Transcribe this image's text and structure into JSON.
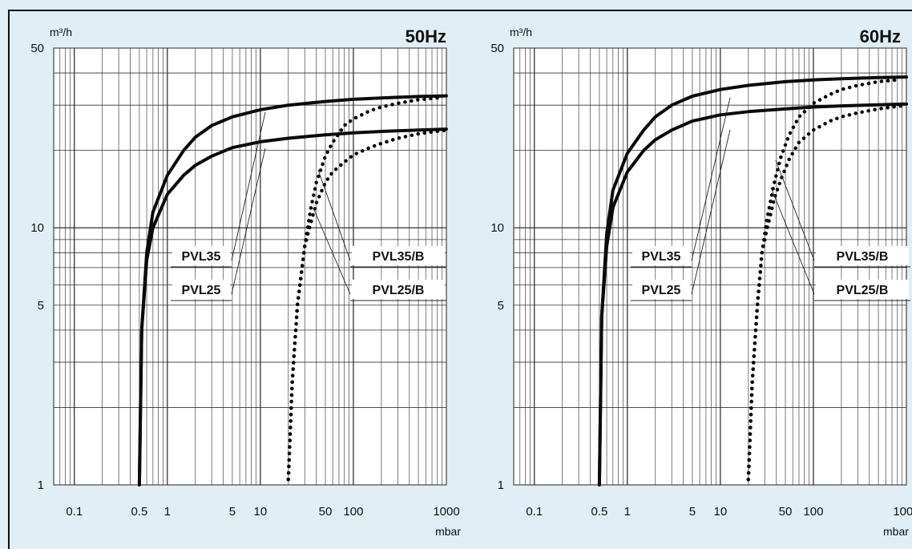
{
  "chart_data": [
    {
      "type": "line",
      "title": "50Hz",
      "xlabel": "mbar",
      "ylabel": "m³/h",
      "xscale": "log",
      "yscale": "log",
      "xlim": [
        0.06,
        1000
      ],
      "ylim": [
        1,
        50
      ],
      "grid": true,
      "x_ticks": [
        0.1,
        0.5,
        1,
        5,
        10,
        50,
        100,
        1000
      ],
      "x_tick_labels": [
        "0.1",
        "0.5",
        "1",
        "5",
        "10",
        "50",
        "100",
        "1000"
      ],
      "y_ticks": [
        1,
        5,
        10,
        50
      ],
      "y_tick_labels": [
        "1",
        "5",
        "10",
        "50"
      ],
      "series": [
        {
          "name": "PVL35",
          "style": "solid",
          "x": [
            0.5,
            0.53,
            0.6,
            0.7,
            1,
            1.5,
            2,
            3,
            5,
            10,
            20,
            50,
            100,
            200,
            500,
            1000
          ],
          "y": [
            1,
            4,
            8,
            11.5,
            16,
            20,
            22.5,
            25,
            27,
            28.8,
            30,
            31,
            31.6,
            32,
            32.4,
            32.6
          ]
        },
        {
          "name": "PVL25",
          "style": "solid",
          "x": [
            0.5,
            0.53,
            0.6,
            0.7,
            1,
            1.5,
            2,
            3,
            5,
            10,
            20,
            50,
            100,
            200,
            500,
            1000
          ],
          "y": [
            1,
            4,
            7.5,
            10,
            13.5,
            16,
            17.5,
            19,
            20.5,
            21.6,
            22.3,
            23,
            23.4,
            23.7,
            24,
            24.2
          ]
        },
        {
          "name": "PVL35/B",
          "style": "dotted",
          "x": [
            20,
            22,
            25,
            30,
            35,
            40,
            50,
            60,
            80,
            100,
            150,
            200,
            300,
            500,
            800
          ],
          "y": [
            1.05,
            2.5,
            5,
            8.5,
            12,
            15,
            19,
            21.5,
            25,
            26.5,
            28.5,
            29.5,
            30.5,
            31.5,
            32
          ]
        },
        {
          "name": "PVL25/B",
          "style": "dotted",
          "x": [
            20,
            22,
            25,
            30,
            35,
            40,
            50,
            60,
            80,
            100,
            150,
            200,
            300,
            500,
            1000
          ],
          "y": [
            1.05,
            2.5,
            5,
            8.5,
            10.5,
            12.5,
            15,
            16.5,
            18,
            19.2,
            20.5,
            21.3,
            22.3,
            23.2,
            24
          ]
        }
      ]
    },
    {
      "type": "line",
      "title": "60Hz",
      "xlabel": "mbar",
      "ylabel": "m³/h",
      "xscale": "log",
      "yscale": "log",
      "xlim": [
        0.06,
        1000
      ],
      "ylim": [
        1,
        50
      ],
      "grid": true,
      "x_ticks": [
        0.1,
        0.5,
        1,
        5,
        10,
        50,
        100,
        1000
      ],
      "x_tick_labels": [
        "0.1",
        "0.5",
        "1",
        "5",
        "10",
        "50",
        "100",
        "1000"
      ],
      "y_ticks": [
        1,
        5,
        10,
        50
      ],
      "y_tick_labels": [
        "1",
        "5",
        "10",
        "50"
      ],
      "series": [
        {
          "name": "PVL35",
          "style": "solid",
          "x": [
            0.5,
            0.53,
            0.6,
            0.7,
            1,
            1.5,
            2,
            3,
            5,
            10,
            20,
            50,
            100,
            200,
            500,
            1000
          ],
          "y": [
            1,
            4.5,
            9.5,
            14,
            19.5,
            24,
            27,
            30,
            32.5,
            34.5,
            35.8,
            37,
            37.6,
            38,
            38.4,
            38.6
          ]
        },
        {
          "name": "PVL25",
          "style": "solid",
          "x": [
            0.5,
            0.53,
            0.6,
            0.7,
            1,
            1.5,
            2,
            3,
            5,
            10,
            20,
            50,
            100,
            200,
            500,
            1000
          ],
          "y": [
            1,
            4.5,
            8.5,
            12,
            16.5,
            20,
            22,
            24,
            26,
            27.5,
            28.3,
            29,
            29.5,
            29.8,
            30.1,
            30.3
          ]
        },
        {
          "name": "PVL35/B",
          "style": "dotted",
          "x": [
            20,
            22,
            25,
            28,
            32,
            38,
            45,
            55,
            70,
            100,
            150,
            200,
            300,
            500,
            800
          ],
          "y": [
            1.05,
            2.5,
            5,
            8,
            11,
            15,
            19,
            23,
            27,
            30.5,
            33,
            34.5,
            35.8,
            37,
            37.6
          ]
        },
        {
          "name": "PVL25/B",
          "style": "dotted",
          "x": [
            20,
            22,
            25,
            28,
            32,
            38,
            45,
            55,
            70,
            100,
            150,
            200,
            300,
            500,
            1000
          ],
          "y": [
            1.05,
            2.5,
            5,
            8,
            10,
            13,
            15.5,
            18.5,
            21.5,
            24,
            26,
            27,
            28,
            29,
            30
          ]
        }
      ]
    }
  ]
}
